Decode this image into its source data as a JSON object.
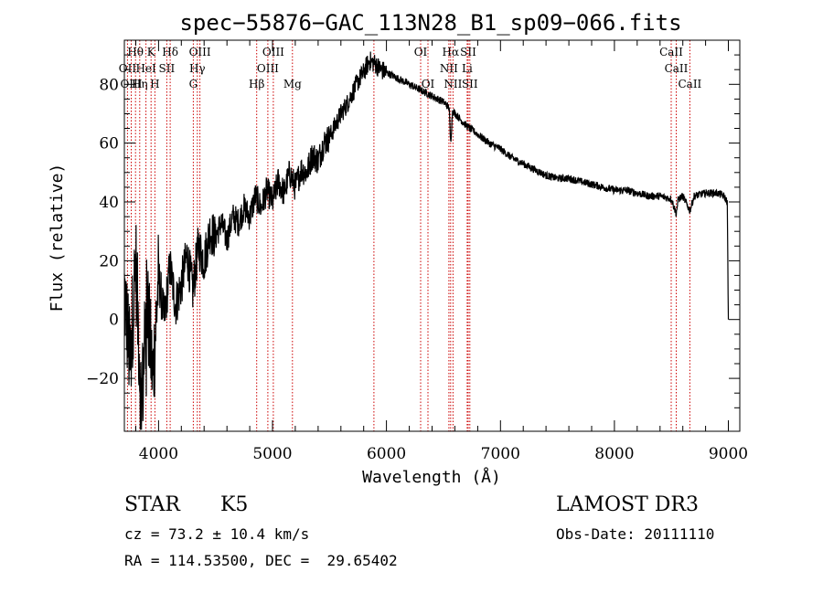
{
  "chart_data": {
    "type": "line",
    "title": "spec−55876−GAC_113N28_B1_sp09−066.fits",
    "xlabel": "Wavelength (Å)",
    "ylabel": "Flux (relative)",
    "xlim": [
      3700,
      9100
    ],
    "ylim": [
      -38,
      95
    ],
    "xticks": [
      4000,
      5000,
      6000,
      7000,
      8000,
      9000
    ],
    "yticks": [
      -20,
      0,
      20,
      40,
      60,
      80
    ],
    "grid": false,
    "series": [
      {
        "name": "spectrum",
        "x": [
          3700,
          3750,
          3800,
          3850,
          3900,
          3950,
          4000,
          4050,
          4100,
          4150,
          4200,
          4250,
          4300,
          4350,
          4400,
          4450,
          4500,
          4550,
          4600,
          4650,
          4700,
          4750,
          4800,
          4850,
          4900,
          4950,
          5000,
          5050,
          5100,
          5150,
          5200,
          5250,
          5300,
          5350,
          5400,
          5450,
          5500,
          5550,
          5600,
          5650,
          5700,
          5750,
          5800,
          5850,
          5900,
          5950,
          6000,
          6100,
          6200,
          6300,
          6400,
          6500,
          6550,
          6563,
          6580,
          6650,
          6700,
          6800,
          6900,
          7000,
          7100,
          7200,
          7300,
          7400,
          7500,
          7600,
          7700,
          7800,
          7900,
          8000,
          8100,
          8200,
          8300,
          8400,
          8500,
          8542,
          8560,
          8600,
          8662,
          8700,
          8800,
          8900,
          8960,
          8990,
          9000
        ],
        "values": [
          10,
          -15,
          20,
          -30,
          5,
          -20,
          15,
          0,
          18,
          5,
          12,
          22,
          10,
          25,
          20,
          30,
          28,
          33,
          27,
          35,
          33,
          38,
          35,
          42,
          38,
          44,
          40,
          47,
          43,
          50,
          45,
          51,
          50,
          56,
          54,
          60,
          62,
          66,
          70,
          73,
          77,
          81,
          84,
          88,
          87,
          85,
          84,
          82,
          80,
          78,
          76,
          74,
          72,
          60,
          71,
          68,
          66,
          63,
          60,
          58,
          55,
          53,
          51,
          49,
          48,
          48,
          47,
          46,
          45,
          44,
          44,
          43,
          42,
          42,
          41,
          36,
          41,
          42,
          37,
          42,
          43,
          43,
          42,
          40,
          0
        ]
      }
    ],
    "line_labels": [
      {
        "label": "Hθ",
        "row": 0,
        "x": 3798
      },
      {
        "label": "K",
        "row": 0,
        "x": 3934
      },
      {
        "label": "Hδ",
        "row": 0,
        "x": 4102
      },
      {
        "label": "OIII",
        "row": 0,
        "x": 4363
      },
      {
        "label": "OIII",
        "row": 0,
        "x": 5007
      },
      {
        "label": "OI",
        "row": 0,
        "x": 6300
      },
      {
        "label": "Hα",
        "row": 0,
        "x": 6563
      },
      {
        "label": "SII",
        "row": 0,
        "x": 6717
      },
      {
        "label": "CaII",
        "row": 0,
        "x": 8498
      },
      {
        "label": "OII",
        "row": 1,
        "x": 3727
      },
      {
        "label": "HeI",
        "row": 1,
        "x": 3889
      },
      {
        "label": "SII",
        "row": 1,
        "x": 4072
      },
      {
        "label": "Hγ",
        "row": 1,
        "x": 4340
      },
      {
        "label": "OIII",
        "row": 1,
        "x": 4959
      },
      {
        "label": "NII",
        "row": 1,
        "x": 6548
      },
      {
        "label": "Li",
        "row": 1,
        "x": 6708
      },
      {
        "label": "CaII",
        "row": 1,
        "x": 8542
      },
      {
        "label": "OIII",
        "row": 2,
        "x": 3760
      },
      {
        "label": "Hη",
        "row": 2,
        "x": 3835
      },
      {
        "label": "H",
        "row": 2,
        "x": 3968
      },
      {
        "label": "G",
        "row": 2,
        "x": 4305
      },
      {
        "label": "Hβ",
        "row": 2,
        "x": 4861
      },
      {
        "label": "Mg",
        "row": 2,
        "x": 5175
      },
      {
        "label": "OI",
        "row": 2,
        "x": 6364
      },
      {
        "label": "NII",
        "row": 2,
        "x": 6584
      },
      {
        "label": "SII",
        "row": 2,
        "x": 6731
      },
      {
        "label": "CaII",
        "row": 2,
        "x": 8662
      }
    ],
    "line_markers": [
      3727,
      3760,
      3798,
      3835,
      3889,
      3934,
      3968,
      4072,
      4102,
      4305,
      4340,
      4363,
      4861,
      4959,
      5007,
      5175,
      5890,
      6300,
      6364,
      6548,
      6563,
      6584,
      6708,
      6717,
      6731,
      8498,
      8542,
      8662
    ]
  },
  "info": {
    "object_class": "STAR",
    "subclass": "K5",
    "survey": "LAMOST DR3",
    "redshift": "cz = 73.2 ± 10.4 km/s",
    "obs_date": "Obs-Date: 20111110",
    "coords": "RA = 114.53500, DEC =  29.65402"
  },
  "colors": {
    "spectrum": "#000000",
    "marker": "#cc0000",
    "axis": "#000000"
  }
}
